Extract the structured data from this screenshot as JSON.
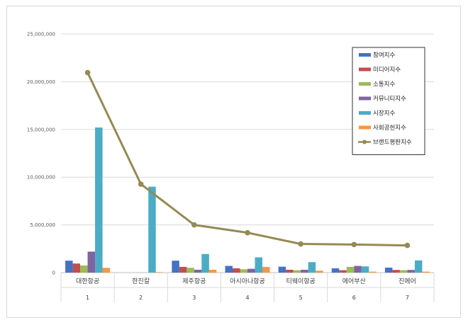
{
  "chart_data": {
    "type": "bar",
    "categories": [
      "대한항공",
      "한진칼",
      "제주항공",
      "아시아나항공",
      "티웨이항공",
      "에어부산",
      "진에어"
    ],
    "category_index": [
      "1",
      "2",
      "3",
      "4",
      "5",
      "6",
      "7"
    ],
    "ylim": [
      0,
      25000000
    ],
    "yticks": [
      "0",
      "5,000,000",
      "10,000,000",
      "15,000,000",
      "20,000,000",
      "25,000,000"
    ],
    "ytick_values": [
      0,
      5000000,
      10000000,
      15000000,
      20000000,
      25000000
    ],
    "grid": true,
    "legend_position": "top-right",
    "series": [
      {
        "name": "참여지수",
        "color": "#4472c4",
        "values": [
          1250000,
          0,
          1250000,
          700000,
          620000,
          450000,
          520000
        ]
      },
      {
        "name": "미디어지수",
        "color": "#c0504d",
        "values": [
          950000,
          0,
          600000,
          450000,
          300000,
          250000,
          280000
        ]
      },
      {
        "name": "소통지수",
        "color": "#9bbb59",
        "values": [
          750000,
          0,
          500000,
          350000,
          250000,
          600000,
          250000
        ]
      },
      {
        "name": "커뮤니티지수",
        "color": "#8064a2",
        "values": [
          2200000,
          0,
          300000,
          400000,
          300000,
          700000,
          280000
        ]
      },
      {
        "name": "시장지수",
        "color": "#4bacc6",
        "values": [
          15200000,
          9000000,
          1950000,
          1600000,
          1100000,
          650000,
          1280000
        ]
      },
      {
        "name": "사회공헌지수",
        "color": "#f79646",
        "values": [
          500000,
          50000,
          300000,
          600000,
          200000,
          100000,
          100000
        ]
      }
    ],
    "line_series": {
      "name": "브랜드평판지수",
      "color": "#948a54",
      "values": [
        20950000,
        9270000,
        5000000,
        4180000,
        3000000,
        2940000,
        2850000
      ]
    }
  }
}
